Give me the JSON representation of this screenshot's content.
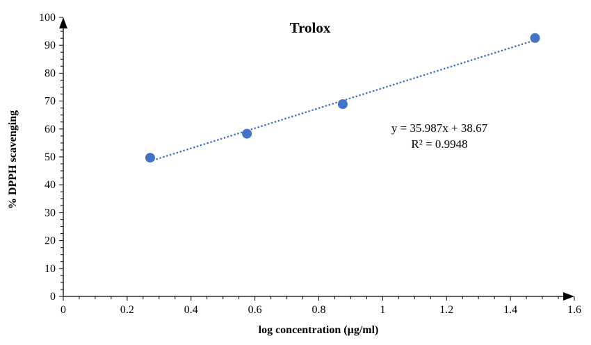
{
  "chart_data": {
    "type": "scatter",
    "title": "Trolox",
    "xlabel": "log concentration (µg/ml)",
    "ylabel": "% DPPH scavenging",
    "xlim": [
      0,
      1.6
    ],
    "ylim": [
      0,
      100
    ],
    "x_ticks": [
      "0",
      "0.2",
      "0.4",
      "0.6",
      "0.8",
      "1",
      "1.2",
      "1.4",
      "1.6"
    ],
    "y_ticks": [
      "0",
      "10",
      "20",
      "30",
      "40",
      "50",
      "60",
      "70",
      "80",
      "90",
      "100"
    ],
    "series": [
      {
        "points": [
          {
            "x": 0.272,
            "y": 49.7
          },
          {
            "x": 0.575,
            "y": 58.3
          },
          {
            "x": 0.875,
            "y": 68.9
          },
          {
            "x": 1.477,
            "y": 92.6
          }
        ]
      }
    ],
    "trendline": {
      "type": "linear",
      "style": "dotted",
      "slope": 35.987,
      "intercept": 38.67,
      "x_range": [
        0.272,
        1.477
      ],
      "equation": "y = 35.987x + 38.67",
      "r_squared": "R² = 0.9948"
    },
    "grid": false,
    "legend": "none",
    "colors": {
      "marker": "#4472C4",
      "trendline": "#4472C4",
      "axis": "#000000"
    }
  }
}
